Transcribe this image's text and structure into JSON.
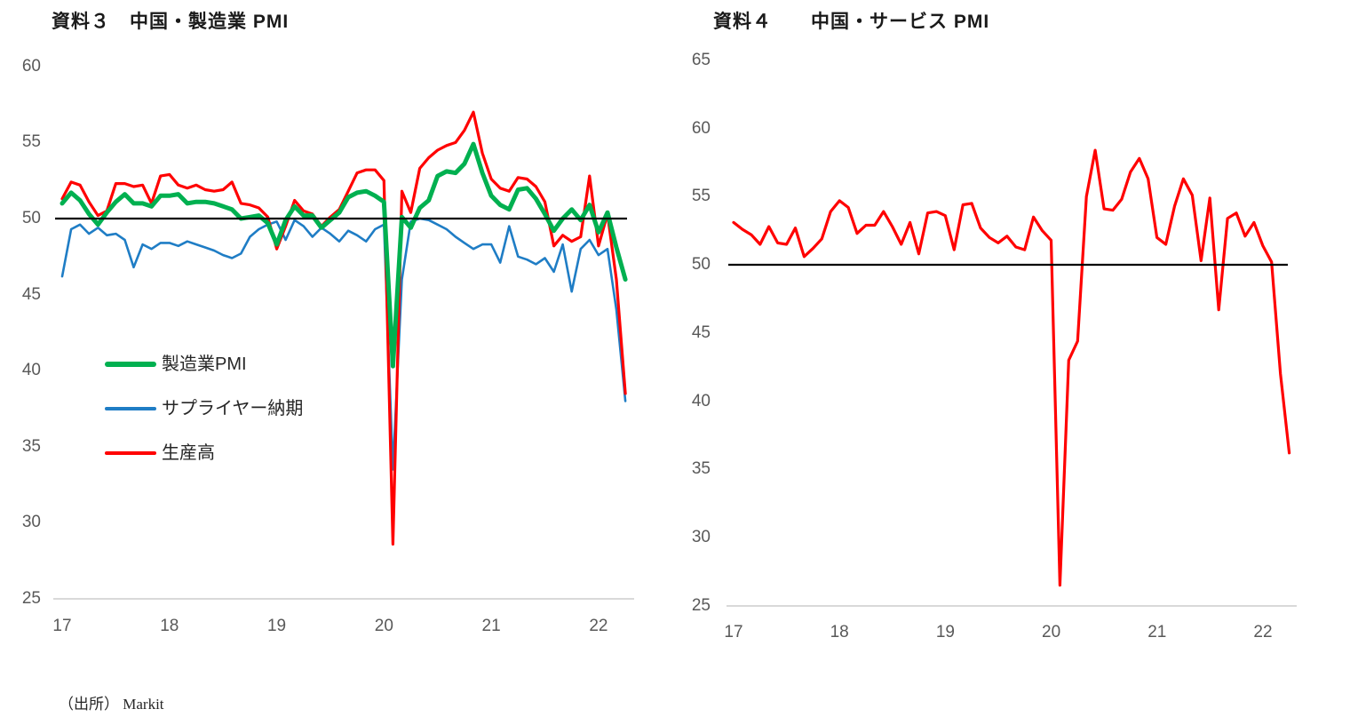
{
  "page": {
    "background": "#FFFFFF"
  },
  "source_note": "（出所） Markit",
  "colors": {
    "manufacturing_pmi": "#00B050",
    "supplier_delivery": "#1F7DC5",
    "output": "#FF0000",
    "services_pmi": "#FF0000",
    "baseline": "#000000",
    "axis_line": "#D9D9D9",
    "tick_text": "#595959"
  },
  "chart_data": [
    {
      "type": "line",
      "title": "資料３　中国・製造業 PMI",
      "x_start": "2017-01",
      "x_freq": "monthly",
      "ylim": [
        25,
        60
      ],
      "y_ticks": [
        60,
        55,
        50,
        45,
        40,
        35,
        30,
        25
      ],
      "x_tick_labels": [
        "17",
        "18",
        "19",
        "20",
        "21",
        "22"
      ],
      "baseline": 50,
      "grid": false,
      "legend_position": "inside-left",
      "series": [
        {
          "name": "製造業PMI",
          "color": "#00B050",
          "width": 5,
          "values": [
            51.0,
            51.7,
            51.2,
            50.3,
            49.6,
            50.4,
            51.1,
            51.6,
            51.0,
            51.0,
            50.8,
            51.5,
            51.5,
            51.6,
            51.0,
            51.1,
            51.1,
            51.0,
            50.8,
            50.6,
            50.0,
            50.1,
            50.2,
            49.7,
            48.3,
            49.9,
            50.8,
            50.2,
            50.2,
            49.4,
            49.9,
            50.4,
            51.4,
            51.7,
            51.8,
            51.5,
            51.1,
            40.3,
            50.1,
            49.4,
            50.7,
            51.2,
            52.8,
            53.1,
            53.0,
            53.6,
            54.9,
            53.0,
            51.5,
            50.9,
            50.6,
            51.9,
            52.0,
            51.3,
            50.3,
            49.2,
            50.0,
            50.6,
            49.9,
            50.9,
            49.1,
            50.4,
            48.1,
            46.0
          ]
        },
        {
          "name": "サプライヤー納期",
          "color": "#1F7DC5",
          "width": 2.6,
          "values": [
            46.2,
            49.3,
            49.6,
            49.0,
            49.4,
            48.9,
            49.0,
            48.6,
            46.8,
            48.3,
            48.0,
            48.4,
            48.4,
            48.2,
            48.5,
            48.3,
            48.1,
            47.9,
            47.6,
            47.4,
            47.7,
            48.8,
            49.3,
            49.6,
            49.8,
            48.6,
            49.9,
            49.5,
            48.8,
            49.4,
            49.0,
            48.5,
            49.2,
            48.9,
            48.5,
            49.3,
            49.6,
            33.5,
            46.0,
            49.8,
            50.0,
            49.9,
            49.6,
            49.3,
            48.8,
            48.4,
            48.0,
            48.3,
            48.3,
            47.1,
            49.5,
            47.5,
            47.3,
            47.0,
            47.4,
            46.5,
            48.3,
            45.2,
            48.0,
            48.6,
            47.6,
            48.0,
            44.0,
            38.0
          ]
        },
        {
          "name": "生産高",
          "color": "#FF0000",
          "width": 3.2,
          "values": [
            51.3,
            52.4,
            52.2,
            51.1,
            50.2,
            50.5,
            52.3,
            52.3,
            52.1,
            52.2,
            51.0,
            52.8,
            52.9,
            52.2,
            52.0,
            52.2,
            51.9,
            51.8,
            51.9,
            52.4,
            51.0,
            50.9,
            50.7,
            50.1,
            48.0,
            49.5,
            51.2,
            50.5,
            50.3,
            49.5,
            50.1,
            50.6,
            51.8,
            53.0,
            53.2,
            53.2,
            52.5,
            28.6,
            51.8,
            50.4,
            53.3,
            54.0,
            54.5,
            54.8,
            55.0,
            55.8,
            57.0,
            54.3,
            52.6,
            52.0,
            51.8,
            52.7,
            52.6,
            52.1,
            51.1,
            48.2,
            48.9,
            48.5,
            48.8,
            52.8,
            48.2,
            50.3,
            46.0,
            38.5
          ]
        }
      ]
    },
    {
      "type": "line",
      "title": "資料４　　中国・サービス PMI",
      "x_start": "2017-01",
      "x_freq": "monthly",
      "ylim": [
        25,
        65
      ],
      "y_ticks": [
        65,
        60,
        55,
        50,
        45,
        40,
        35,
        30,
        25
      ],
      "x_tick_labels": [
        "17",
        "18",
        "19",
        "20",
        "21",
        "22"
      ],
      "baseline": 50,
      "grid": false,
      "series": [
        {
          "name": "サービスPMI",
          "color": "#FF0000",
          "width": 3.2,
          "values": [
            53.1,
            52.6,
            52.2,
            51.5,
            52.8,
            51.6,
            51.5,
            52.7,
            50.6,
            51.2,
            51.9,
            53.9,
            54.7,
            54.2,
            52.3,
            52.9,
            52.9,
            53.9,
            52.8,
            51.5,
            53.1,
            50.8,
            53.8,
            53.9,
            53.6,
            51.1,
            54.4,
            54.5,
            52.7,
            52.0,
            51.6,
            52.1,
            51.3,
            51.1,
            53.5,
            52.5,
            51.8,
            26.5,
            43.0,
            44.4,
            55.0,
            58.4,
            54.1,
            54.0,
            54.8,
            56.8,
            57.8,
            56.3,
            52.0,
            51.5,
            54.3,
            56.3,
            55.1,
            50.3,
            54.9,
            46.7,
            53.4,
            53.8,
            52.1,
            53.1,
            51.4,
            50.2,
            42.0,
            36.2
          ]
        }
      ]
    }
  ]
}
